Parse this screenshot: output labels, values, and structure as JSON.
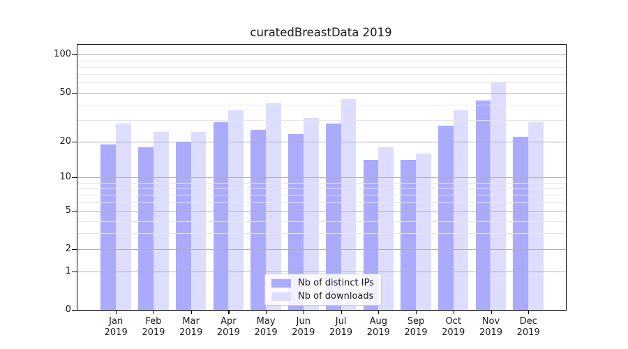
{
  "title": "curatedBreastData 2019",
  "chart_data": {
    "type": "bar",
    "title": "curatedBreastData 2019",
    "xlabel": "",
    "ylabel": "",
    "year_label": "2019",
    "categories": [
      "Jan",
      "Feb",
      "Mar",
      "Apr",
      "May",
      "Jun",
      "Jul",
      "Aug",
      "Sep",
      "Oct",
      "Nov",
      "Dec"
    ],
    "series": [
      {
        "name": "Nb of distinct IPs",
        "color": "#aaaaff",
        "values": [
          19,
          18,
          20,
          29,
          25,
          23,
          28,
          14,
          14,
          27,
          43,
          22
        ]
      },
      {
        "name": "Nb of downloads",
        "color": "#ddddff",
        "values": [
          28,
          24,
          24,
          36,
          41,
          31,
          44,
          18,
          16,
          36,
          61,
          29
        ]
      }
    ],
    "yscale": "log1p",
    "ylim": [
      0,
      120
    ],
    "yticks": [
      0,
      1,
      2,
      5,
      10,
      20,
      50,
      100
    ],
    "minor_gridlines": [
      3,
      4,
      6,
      7,
      8,
      9,
      30,
      40,
      60,
      70,
      80,
      90
    ],
    "grid": true,
    "legend_position": "bottom-center"
  },
  "colors": {
    "major_grid": "#b0b0b0",
    "minor_grid": "#e6e6e6",
    "axis": "#000000",
    "background": "#ffffff"
  }
}
